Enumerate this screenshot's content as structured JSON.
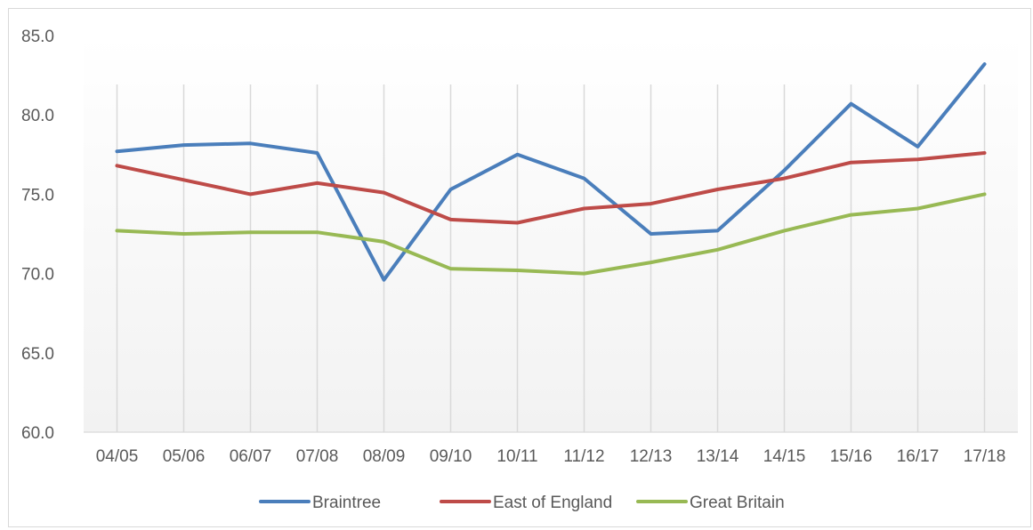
{
  "chart_data": {
    "type": "line",
    "categories": [
      "04/05",
      "05/06",
      "06/07",
      "07/08",
      "08/09",
      "09/10",
      "10/11",
      "11/12",
      "12/13",
      "13/14",
      "14/15",
      "15/16",
      "16/17",
      "17/18"
    ],
    "series": [
      {
        "name": "Braintree",
        "color": "#4a7ebb",
        "values": [
          77.7,
          78.1,
          78.2,
          77.6,
          69.6,
          75.3,
          77.5,
          76.0,
          72.5,
          72.7,
          76.5,
          80.7,
          78.0,
          83.2
        ]
      },
      {
        "name": "East of England",
        "color": "#be4b48",
        "values": [
          76.8,
          75.9,
          75.0,
          75.7,
          75.1,
          73.4,
          73.2,
          74.1,
          74.4,
          75.3,
          76.0,
          77.0,
          77.2,
          77.6
        ]
      },
      {
        "name": "Great Britain",
        "color": "#98b954",
        "values": [
          72.7,
          72.5,
          72.6,
          72.6,
          72.0,
          70.3,
          70.2,
          70.0,
          70.7,
          71.5,
          72.7,
          73.7,
          74.1,
          75.0
        ]
      }
    ],
    "y_ticks": [
      "60.0",
      "65.0",
      "70.0",
      "75.0",
      "80.0",
      "85.0"
    ],
    "ylim": [
      60,
      85
    ],
    "grid": "vertical",
    "legend": "bottom"
  }
}
